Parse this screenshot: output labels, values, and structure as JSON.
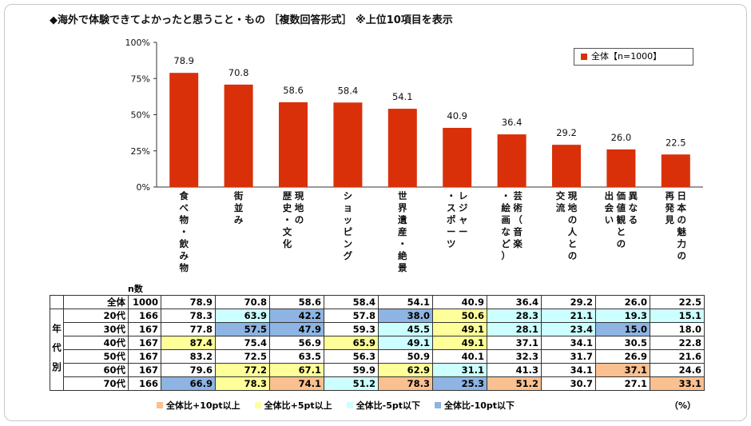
{
  "title": "◆海外で体験できてよかったと思うこと・もの ［複数回答形式］ ※上位10項目を表示",
  "chart_data": {
    "type": "bar",
    "categories": [
      "食べ物・飲み物",
      "街並み",
      "現地の歴史・文化",
      "ショッピング",
      "世界遺産・絶景",
      "レジャー・スポーツ",
      "芸術（音楽・絵画など）",
      "現地の人との交流",
      "異なる価値観との出会い",
      "日本の魅力の再発見"
    ],
    "category_lines": [
      [
        "食べ物・飲み物"
      ],
      [
        "街並み"
      ],
      [
        "現地の",
        "歴史・文化"
      ],
      [
        "ショッピング"
      ],
      [
        "世界遺産・絶景"
      ],
      [
        "レジャー",
        "・スポーツ"
      ],
      [
        "芸術（音楽",
        "・絵画など）"
      ],
      [
        "現地の人との",
        "交流"
      ],
      [
        "異なる",
        "価値観との",
        "出会い"
      ],
      [
        "日本の魅力の",
        "再発見"
      ]
    ],
    "series": [
      {
        "name": "全体【n=1000】",
        "values": [
          78.9,
          70.8,
          58.6,
          58.4,
          54.1,
          40.9,
          36.4,
          29.2,
          26.0,
          22.5
        ]
      }
    ],
    "ylim": [
      0,
      100
    ],
    "yticks": [
      "0%",
      "25%",
      "50%",
      "75%",
      "100%"
    ],
    "ytick_values": [
      0,
      25,
      50,
      75,
      100
    ],
    "bar_color": "#d9300a"
  },
  "table": {
    "n_header": "n数",
    "group_label": [
      "年",
      "代",
      "別"
    ],
    "rows": [
      {
        "label": "全体",
        "n": "1000",
        "values": [
          "78.9",
          "70.8",
          "58.6",
          "58.4",
          "54.1",
          "40.9",
          "36.4",
          "29.2",
          "26.0",
          "22.5"
        ],
        "marks": [
          "",
          "",
          "",
          "",
          "",
          "",
          "",
          "",
          "",
          ""
        ]
      },
      {
        "label": "20代",
        "n": "166",
        "values": [
          "78.3",
          "63.9",
          "42.2",
          "57.8",
          "38.0",
          "50.6",
          "28.3",
          "21.1",
          "19.3",
          "15.1"
        ],
        "marks": [
          "",
          "m5",
          "m10",
          "",
          "m10",
          "p5",
          "m5",
          "m5",
          "m5",
          "m5"
        ]
      },
      {
        "label": "30代",
        "n": "167",
        "values": [
          "77.8",
          "57.5",
          "47.9",
          "59.3",
          "45.5",
          "49.1",
          "28.1",
          "23.4",
          "15.0",
          "18.0"
        ],
        "marks": [
          "",
          "m10",
          "m10",
          "",
          "m5",
          "p5",
          "m5",
          "m5",
          "m10",
          ""
        ]
      },
      {
        "label": "40代",
        "n": "167",
        "values": [
          "87.4",
          "75.4",
          "56.9",
          "65.9",
          "49.1",
          "49.1",
          "37.1",
          "34.1",
          "30.5",
          "22.8"
        ],
        "marks": [
          "p5",
          "",
          "",
          "p5",
          "m5",
          "p5",
          "",
          "",
          "",
          ""
        ]
      },
      {
        "label": "50代",
        "n": "167",
        "values": [
          "83.2",
          "72.5",
          "63.5",
          "56.3",
          "50.9",
          "40.1",
          "32.3",
          "31.7",
          "26.9",
          "21.6"
        ],
        "marks": [
          "",
          "",
          "",
          "",
          "",
          "",
          "",
          "",
          "",
          ""
        ]
      },
      {
        "label": "60代",
        "n": "167",
        "values": [
          "79.6",
          "77.2",
          "67.1",
          "59.9",
          "62.9",
          "31.1",
          "41.3",
          "34.1",
          "37.1",
          "24.6"
        ],
        "marks": [
          "",
          "p5",
          "p5",
          "",
          "p5",
          "m5",
          "",
          "",
          "p10",
          ""
        ]
      },
      {
        "label": "70代",
        "n": "166",
        "values": [
          "66.9",
          "78.3",
          "74.1",
          "51.2",
          "78.3",
          "25.3",
          "51.2",
          "30.7",
          "27.1",
          "33.1"
        ],
        "marks": [
          "m10",
          "p5",
          "p10",
          "m5",
          "p10",
          "m10",
          "p10",
          "",
          "",
          "p10"
        ]
      }
    ]
  },
  "legend": [
    {
      "key": "p10",
      "label": "全体比+10pt以上",
      "color": "#fac090"
    },
    {
      "key": "p5",
      "label": "全体比+5pt以上",
      "color": "#ffff99"
    },
    {
      "key": "m5",
      "label": "全体比-5pt以下",
      "color": "#ccffff"
    },
    {
      "key": "m10",
      "label": "全体比-10pt以下",
      "color": "#8db4e2"
    }
  ],
  "unit": "（%）"
}
